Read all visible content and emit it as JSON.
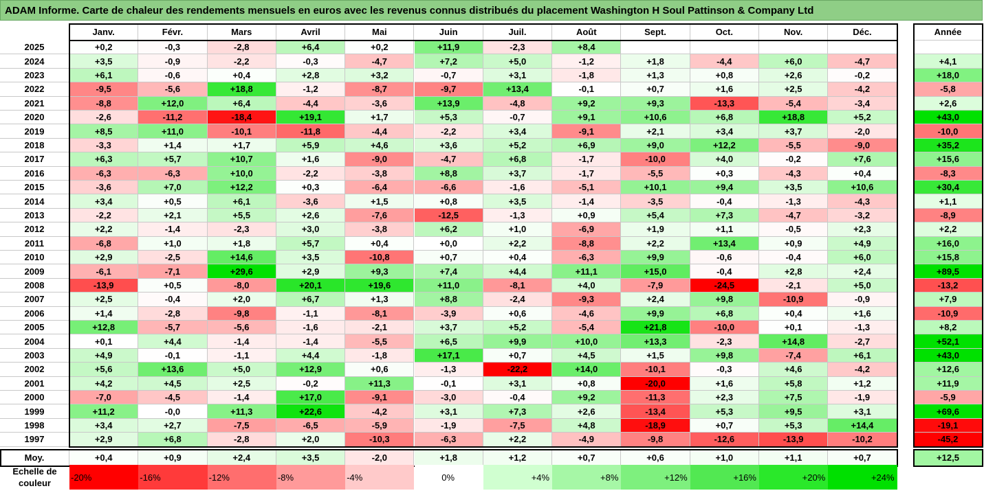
{
  "title": "ADAM Informe. Carte de chaleur des rendements mensuels en euros avec les revenus connus distribués du placement Washington H Soul Pattinson & Company Ltd",
  "chart_data": {
    "type": "heatmap",
    "columns": [
      "Janv.",
      "Févr.",
      "Mars",
      "Avril",
      "Mai",
      "Juin",
      "Juil.",
      "Août",
      "Sept.",
      "Oct.",
      "Nov.",
      "Déc."
    ],
    "year_header": "Année",
    "avg_label": "Moy.",
    "rows": [
      {
        "year": "2025",
        "values": [
          "+0,2",
          "-0,3",
          "-2,8",
          "+6,4",
          "+0,2",
          "+11,9",
          "-2,3",
          "+8,4",
          "",
          "",
          "",
          ""
        ],
        "annual": ""
      },
      {
        "year": "2024",
        "values": [
          "+3,5",
          "-0,9",
          "-2,2",
          "-0,3",
          "-4,7",
          "+7,2",
          "+5,0",
          "-1,2",
          "+1,8",
          "-4,4",
          "+6,0",
          "-4,7"
        ],
        "annual": "+4,1"
      },
      {
        "year": "2023",
        "values": [
          "+6,1",
          "-0,6",
          "+0,4",
          "+2,8",
          "+3,2",
          "-0,7",
          "+3,1",
          "-1,8",
          "+1,3",
          "+0,8",
          "+2,6",
          "-0,2"
        ],
        "annual": "+18,0"
      },
      {
        "year": "2022",
        "values": [
          "-9,5",
          "-5,6",
          "+18,8",
          "-1,2",
          "-8,7",
          "-9,7",
          "+13,4",
          "-0,1",
          "+0,7",
          "+1,6",
          "+2,5",
          "-4,2"
        ],
        "annual": "-5,8"
      },
      {
        "year": "2021",
        "values": [
          "-8,8",
          "+12,0",
          "+6,4",
          "-4,4",
          "-3,6",
          "+13,9",
          "-4,8",
          "+9,2",
          "+9,3",
          "-13,3",
          "-5,4",
          "-3,4"
        ],
        "annual": "+2,6"
      },
      {
        "year": "2020",
        "values": [
          "-2,6",
          "-11,2",
          "-18,4",
          "+19,1",
          "+1,7",
          "+5,3",
          "-0,7",
          "+9,1",
          "+10,6",
          "+6,8",
          "+18,8",
          "+5,2"
        ],
        "annual": "+43,0"
      },
      {
        "year": "2019",
        "values": [
          "+8,5",
          "+11,0",
          "-10,1",
          "-11,8",
          "-4,4",
          "-2,2",
          "+3,4",
          "-9,1",
          "+2,1",
          "+3,4",
          "+3,7",
          "-2,0"
        ],
        "annual": "-10,0"
      },
      {
        "year": "2018",
        "values": [
          "-3,3",
          "+1,4",
          "+1,7",
          "+5,9",
          "+4,6",
          "+3,6",
          "+5,2",
          "+6,9",
          "+9,0",
          "+12,2",
          "-5,5",
          "-9,0"
        ],
        "annual": "+35,2"
      },
      {
        "year": "2017",
        "values": [
          "+6,3",
          "+5,7",
          "+10,7",
          "+1,6",
          "-9,0",
          "-4,7",
          "+6,8",
          "-1,7",
          "-10,0",
          "+4,0",
          "-0,2",
          "+7,6"
        ],
        "annual": "+15,6"
      },
      {
        "year": "2016",
        "values": [
          "-6,3",
          "-6,3",
          "+10,0",
          "-2,2",
          "-3,8",
          "+8,8",
          "+3,7",
          "-1,7",
          "-5,5",
          "+0,3",
          "-4,3",
          "+0,4"
        ],
        "annual": "-8,3"
      },
      {
        "year": "2015",
        "values": [
          "-3,6",
          "+7,0",
          "+12,2",
          "+0,3",
          "-6,4",
          "-6,6",
          "-1,6",
          "-5,1",
          "+10,1",
          "+9,4",
          "+3,5",
          "+10,6"
        ],
        "annual": "+30,4"
      },
      {
        "year": "2014",
        "values": [
          "+3,4",
          "+0,5",
          "+6,1",
          "-3,6",
          "+1,5",
          "+0,8",
          "+3,5",
          "-1,4",
          "-3,5",
          "-0,4",
          "-1,3",
          "-4,3"
        ],
        "annual": "+1,1"
      },
      {
        "year": "2013",
        "values": [
          "-2,2",
          "+2,1",
          "+5,5",
          "+2,6",
          "-7,6",
          "-12,5",
          "-1,3",
          "+0,9",
          "+5,4",
          "+7,3",
          "-4,7",
          "-3,2"
        ],
        "annual": "-8,9"
      },
      {
        "year": "2012",
        "values": [
          "+2,2",
          "-1,4",
          "-2,3",
          "+3,0",
          "-3,8",
          "+6,2",
          "+1,0",
          "-6,9",
          "+1,9",
          "+1,1",
          "-0,5",
          "+2,3"
        ],
        "annual": "+2,2"
      },
      {
        "year": "2011",
        "values": [
          "-6,8",
          "+1,0",
          "+1,8",
          "+5,7",
          "+0,4",
          "+0,0",
          "+2,2",
          "-8,8",
          "+2,2",
          "+13,4",
          "+0,9",
          "+4,9"
        ],
        "annual": "+16,0"
      },
      {
        "year": "2010",
        "values": [
          "+2,9",
          "-2,5",
          "+14,6",
          "+3,5",
          "-10,8",
          "+0,7",
          "+0,4",
          "-6,3",
          "+9,9",
          "-0,6",
          "-0,4",
          "+6,0"
        ],
        "annual": "+15,8"
      },
      {
        "year": "2009",
        "values": [
          "-6,1",
          "-7,1",
          "+29,6",
          "+2,9",
          "+9,3",
          "+7,4",
          "+4,4",
          "+11,1",
          "+15,0",
          "-0,4",
          "+2,8",
          "+2,4"
        ],
        "annual": "+89,5"
      },
      {
        "year": "2008",
        "values": [
          "-13,9",
          "+0,5",
          "-8,0",
          "+20,1",
          "+19,6",
          "+11,0",
          "-8,1",
          "+4,0",
          "-7,9",
          "-24,5",
          "-2,1",
          "+5,0"
        ],
        "annual": "-13,2"
      },
      {
        "year": "2007",
        "values": [
          "+2,5",
          "-0,4",
          "+2,0",
          "+6,7",
          "+1,3",
          "+8,8",
          "-2,4",
          "-9,3",
          "+2,4",
          "+9,8",
          "-10,9",
          "-0,9"
        ],
        "annual": "+7,9"
      },
      {
        "year": "2006",
        "values": [
          "+1,4",
          "-2,8",
          "-9,8",
          "-1,1",
          "-8,1",
          "-3,9",
          "+0,6",
          "-4,6",
          "+9,9",
          "+6,8",
          "+0,4",
          "+1,6"
        ],
        "annual": "-10,9"
      },
      {
        "year": "2005",
        "values": [
          "+12,8",
          "-5,7",
          "-5,6",
          "-1,6",
          "-2,1",
          "+3,7",
          "+5,2",
          "-5,4",
          "+21,8",
          "-10,0",
          "+0,1",
          "-1,3"
        ],
        "annual": "+8,2"
      },
      {
        "year": "2004",
        "values": [
          "+0,1",
          "+4,4",
          "-1,4",
          "-1,4",
          "-5,5",
          "+6,5",
          "+9,9",
          "+10,0",
          "+13,3",
          "-2,3",
          "+14,8",
          "-2,7"
        ],
        "annual": "+52,1"
      },
      {
        "year": "2003",
        "values": [
          "+4,9",
          "-0,1",
          "-1,1",
          "+4,4",
          "-1,8",
          "+17,1",
          "+0,7",
          "+4,5",
          "+1,5",
          "+9,8",
          "-7,4",
          "+6,1"
        ],
        "annual": "+43,0"
      },
      {
        "year": "2002",
        "values": [
          "+5,6",
          "+13,6",
          "+5,0",
          "+12,9",
          "+0,6",
          "-1,3",
          "-22,2",
          "+14,0",
          "-10,1",
          "-0,3",
          "+4,6",
          "-4,2"
        ],
        "annual": "+12,6"
      },
      {
        "year": "2001",
        "values": [
          "+4,2",
          "+4,5",
          "+2,5",
          "-0,2",
          "+11,3",
          "-0,1",
          "+3,1",
          "+0,8",
          "-20,0",
          "+1,6",
          "+5,8",
          "+1,2"
        ],
        "annual": "+11,9"
      },
      {
        "year": "2000",
        "values": [
          "-7,0",
          "-4,5",
          "-1,4",
          "+17,0",
          "-9,1",
          "-3,0",
          "-0,4",
          "+9,2",
          "-11,3",
          "+2,3",
          "+7,5",
          "-1,9"
        ],
        "annual": "-5,9"
      },
      {
        "year": "1999",
        "values": [
          "+11,2",
          "-0,0",
          "+11,3",
          "+22,6",
          "-4,2",
          "+3,1",
          "+7,3",
          "+2,6",
          "-13,4",
          "+5,3",
          "+9,5",
          "+3,1"
        ],
        "annual": "+69,6"
      },
      {
        "year": "1998",
        "values": [
          "+3,4",
          "+2,7",
          "-7,5",
          "-6,5",
          "-5,9",
          "-1,9",
          "-7,5",
          "+4,8",
          "-18,9",
          "+0,7",
          "+5,3",
          "+14,4"
        ],
        "annual": "-19,1"
      },
      {
        "year": "1997",
        "values": [
          "+2,9",
          "+6,8",
          "-2,8",
          "+2,0",
          "-10,3",
          "-6,3",
          "+2,2",
          "-4,9",
          "-9,8",
          "-12,6",
          "-13,9",
          "-10,2"
        ],
        "annual": "-45,2"
      }
    ],
    "averages": [
      "+0,4",
      "+0,9",
      "+2,4",
      "+3,5",
      "-2,0",
      "+1,8",
      "+1,2",
      "+0,7",
      "+0,6",
      "+1,0",
      "+1,1",
      "+0,7"
    ],
    "average_annual": "+12,5",
    "scale_label": "Echelle de couleur",
    "scale": [
      {
        "label": "-20%",
        "color": "#ff0000",
        "align": "left"
      },
      {
        "label": "-16%",
        "color": "#ff3a3a",
        "align": "left"
      },
      {
        "label": "-12%",
        "color": "#ff6e6e",
        "align": "left"
      },
      {
        "label": "-8%",
        "color": "#ff9a9a",
        "align": "left"
      },
      {
        "label": "-4%",
        "color": "#ffcaca",
        "align": "left"
      },
      {
        "label": "0%",
        "color": "#ffffff",
        "align": "center"
      },
      {
        "label": "+4%",
        "color": "#d0ffd0",
        "align": "right"
      },
      {
        "label": "+8%",
        "color": "#a6f7a6",
        "align": "right"
      },
      {
        "label": "+12%",
        "color": "#7ef07e",
        "align": "right"
      },
      {
        "label": "+16%",
        "color": "#52e852",
        "align": "right"
      },
      {
        "label": "+20%",
        "color": "#2ae82a",
        "align": "right"
      },
      {
        "label": "+24%",
        "color": "#00e000",
        "align": "right"
      }
    ]
  }
}
